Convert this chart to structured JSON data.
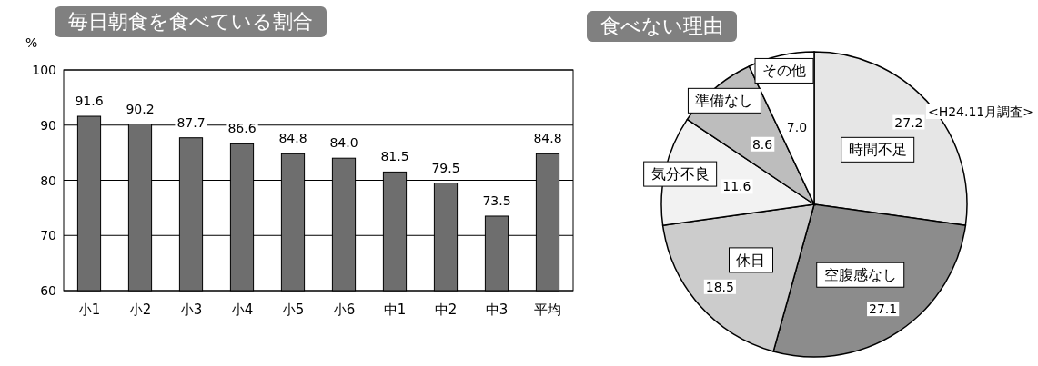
{
  "chart_data": [
    {
      "type": "bar",
      "title": "毎日朝食を食べている割合",
      "ylabel": "%",
      "categories": [
        "小1",
        "小2",
        "小3",
        "小4",
        "小5",
        "小6",
        "中1",
        "中2",
        "中3",
        "平均"
      ],
      "values": [
        91.6,
        90.2,
        87.7,
        86.6,
        84.8,
        84.0,
        81.5,
        79.5,
        73.5,
        84.8
      ],
      "value_labels": [
        "91.6",
        "90.2",
        "87.7",
        "86.6",
        "84.8",
        "84.0",
        "81.5",
        "79.5",
        "73.5",
        "84.8"
      ],
      "color": "#6e6e6e",
      "ylim": [
        60,
        100
      ],
      "yticks": [
        60,
        70,
        80,
        90,
        100
      ],
      "grid": "y"
    },
    {
      "type": "pie",
      "title": "食べない理由",
      "categories": [
        "時間不足",
        "空腹感なし",
        "休日",
        "気分不良",
        "準備なし",
        "その他"
      ],
      "values": [
        27.2,
        27.1,
        18.5,
        11.6,
        8.6,
        7.0
      ],
      "value_labels": [
        "27.2",
        "27.1",
        "18.5",
        "11.6",
        "8.6",
        "7.0"
      ],
      "colors": [
        "#e6e6e6",
        "#8c8c8c",
        "#cccccc",
        "#f2f2f2",
        "#bdbdbd",
        "#ffffff"
      ],
      "annotations": [
        "<H24.11月調査>"
      ]
    }
  ]
}
